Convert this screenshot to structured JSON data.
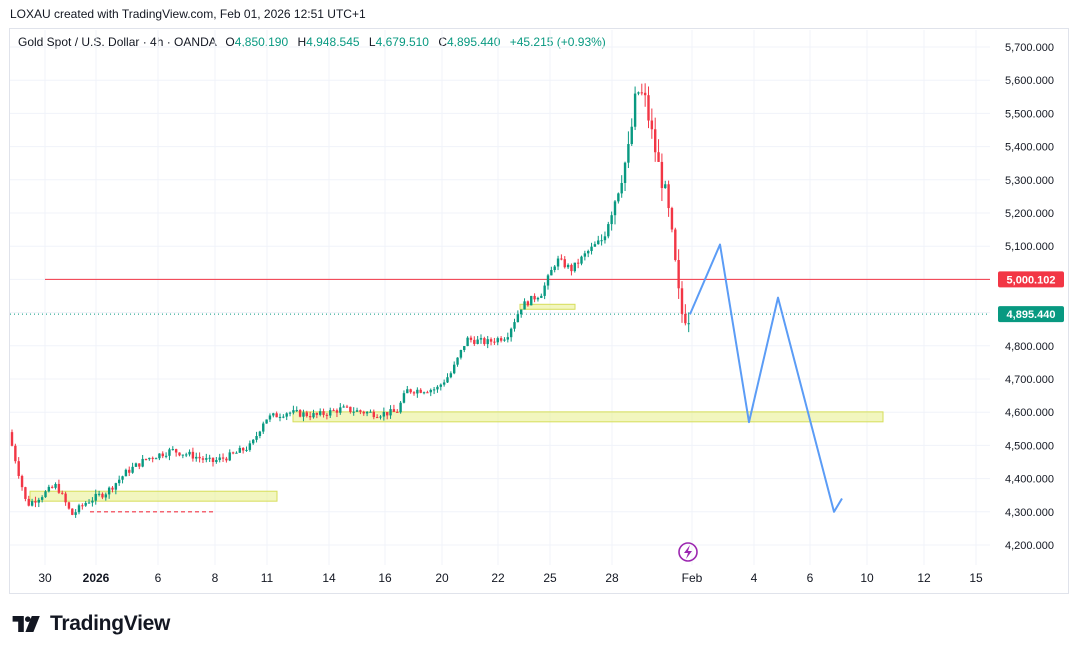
{
  "credit": "LOXAU created with TradingView.com, Feb 01, 2026 12:51 UTC+1",
  "legend": {
    "symbol": "Gold Spot / U.S. Dollar · 4h · OANDA",
    "open_label": "O",
    "open": "4,850.190",
    "high_label": "H",
    "high": "4,948.545",
    "low_label": "L",
    "low": "4,679.510",
    "close_label": "C",
    "close": "4,895.440",
    "change": "+45.215 (+0.93%)"
  },
  "brand": {
    "name": "TradingView",
    "logo_icon": "tradingview-logo-icon"
  },
  "colors": {
    "up": "#089981",
    "down": "#f23645",
    "projection": "#5b9cf6",
    "zone": "#e8ef8a",
    "level_line": "#f23645",
    "last_price": "#089981"
  },
  "chart_data": {
    "type": "candlestick",
    "symbol": "Gold Spot / U.S. Dollar",
    "timeframe": "4h",
    "y_axis": {
      "ylim": [
        4150,
        5760
      ],
      "ticks": [
        "5,700.000",
        "5,600.000",
        "5,500.000",
        "5,400.000",
        "5,300.000",
        "5,200.000",
        "5,100.000",
        "5,000.000",
        "4,900.000",
        "4,800.000",
        "4,700.000",
        "4,600.000",
        "4,500.000",
        "4,400.000",
        "4,300.000",
        "4,200.000"
      ],
      "tick_values": [
        5700,
        5600,
        5500,
        5400,
        5300,
        5200,
        5100,
        5000,
        4900,
        4800,
        4700,
        4600,
        4500,
        4400,
        4300,
        4200
      ]
    },
    "x_axis": {
      "labels": [
        {
          "text": "30",
          "x": 45,
          "bold": false
        },
        {
          "text": "2026",
          "x": 96,
          "bold": true
        },
        {
          "text": "6",
          "x": 158,
          "bold": false
        },
        {
          "text": "8",
          "x": 215,
          "bold": false
        },
        {
          "text": "11",
          "x": 267,
          "bold": false
        },
        {
          "text": "14",
          "x": 329,
          "bold": false
        },
        {
          "text": "16",
          "x": 385,
          "bold": false
        },
        {
          "text": "20",
          "x": 442,
          "bold": false
        },
        {
          "text": "22",
          "x": 498,
          "bold": false
        },
        {
          "text": "25",
          "x": 550,
          "bold": false
        },
        {
          "text": "28",
          "x": 612,
          "bold": false
        },
        {
          "text": "Feb",
          "x": 692,
          "bold": false
        },
        {
          "text": "4",
          "x": 754,
          "bold": false
        },
        {
          "text": "6",
          "x": 810,
          "bold": false
        },
        {
          "text": "10",
          "x": 867,
          "bold": false
        },
        {
          "text": "12",
          "x": 924,
          "bold": false
        },
        {
          "text": "15",
          "x": 976,
          "bold": false
        }
      ]
    },
    "price_labels": [
      {
        "text": "5,000.102",
        "value": 5000.102,
        "color": "#f23645",
        "role": "resistance-level"
      },
      {
        "text": "4,895.440",
        "value": 4895.44,
        "color": "#089981",
        "role": "last-price"
      }
    ],
    "horizontal_line": {
      "value": 5000.102,
      "color": "#f23645"
    },
    "zones": [
      {
        "from": 4332,
        "to": 4362,
        "color": "#e8ef8a"
      },
      {
        "from": 4571,
        "to": 4601,
        "color": "#e8ef8a"
      },
      {
        "from": 4910,
        "to": 4925,
        "color": "#e8ef8a"
      }
    ],
    "low_marker": {
      "value": 4300,
      "color": "#f23645"
    },
    "projection_path_values": [
      4895,
      5105,
      4570,
      4945,
      4300,
      4340
    ],
    "last_price": 4895.44,
    "grid": true,
    "candle_count": 205
  }
}
